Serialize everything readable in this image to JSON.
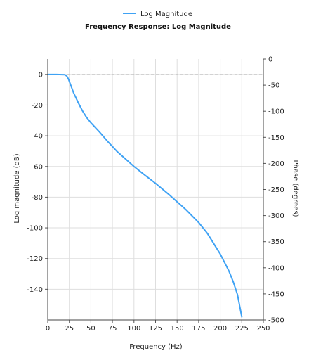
{
  "chart_data": {
    "type": "line",
    "title": "Frequency Response: Log Magnitude",
    "xlabel": "Frequency (Hz)",
    "ylabel": "Log magnitude (dB)",
    "y2label": "Phase (degrees)",
    "legend_position": "top-center",
    "grid": true,
    "xlim": [
      0,
      250
    ],
    "ylim": [
      -160,
      10
    ],
    "y2lim": [
      -500,
      0
    ],
    "x_ticks": [
      "0",
      "25",
      "50",
      "75",
      "100",
      "125",
      "150",
      "175",
      "200",
      "225",
      "250"
    ],
    "y_ticks": [
      "0",
      "-20",
      "-40",
      "-60",
      "-80",
      "-100",
      "-120",
      "-140"
    ],
    "y2_ticks": [
      "0",
      "-50",
      "-100",
      "-150",
      "-200",
      "-250",
      "-300",
      "-350",
      "-400",
      "-450",
      "-500"
    ],
    "reference_line_y": 0,
    "series": [
      {
        "name": "Log Magnitude",
        "color": "#3fa2f4",
        "x": [
          0,
          10,
          20,
          22,
          24,
          26,
          28,
          30,
          35,
          40,
          45,
          50,
          60,
          70,
          80,
          90,
          100,
          110,
          125,
          140,
          150,
          160,
          175,
          185,
          200,
          210,
          215,
          220,
          225
        ],
        "y": [
          0,
          0,
          -0.2,
          -1,
          -3,
          -6,
          -9,
          -12,
          -18,
          -23.5,
          -28,
          -31.5,
          -37.5,
          -44,
          -50,
          -55,
          -60,
          -64.5,
          -71,
          -78,
          -83,
          -88,
          -96.5,
          -103.5,
          -117,
          -128,
          -135,
          -143.5,
          -158
        ]
      }
    ]
  }
}
